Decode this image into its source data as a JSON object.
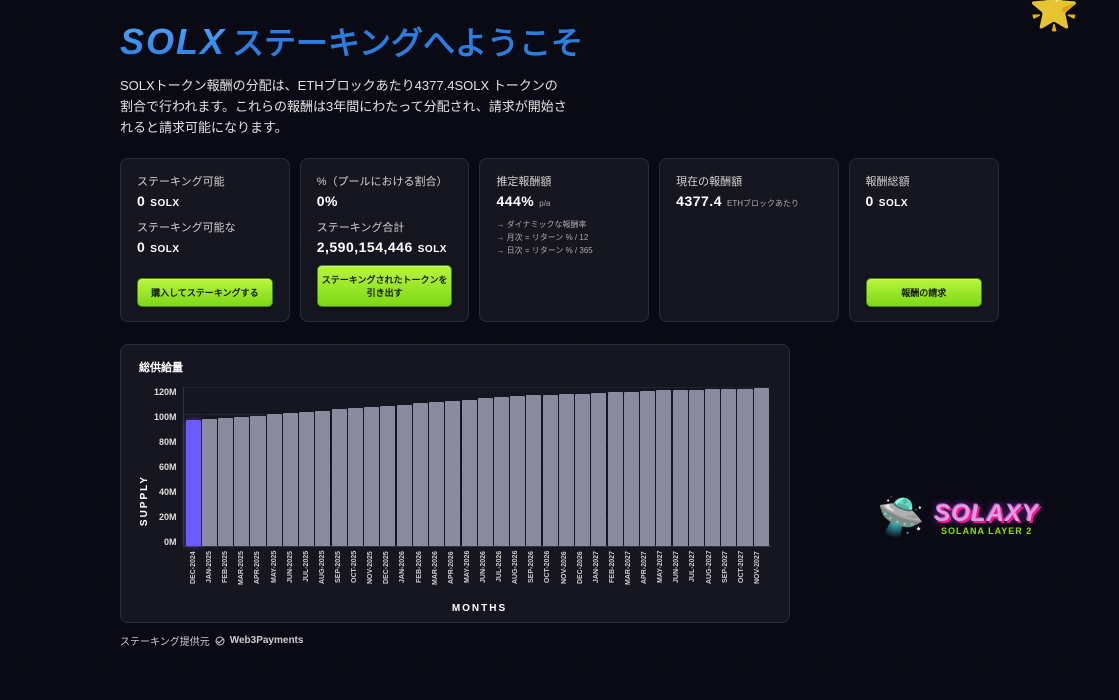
{
  "header": {
    "title_brand": "SOLX",
    "title_rest": "ステーキングへようこそ",
    "description": "SOLXトークン報酬の分配は、ETHブロックあたり4377.4SOLX トークンの割合で行われます。これらの報酬は3年間にわたって分配され、請求が開始されると請求可能になります。"
  },
  "cards": {
    "c1": {
      "label1": "ステーキング可能",
      "value1": "0",
      "unit1": "SOLX",
      "label2": "ステーキング可能な",
      "value2": "0",
      "unit2": "SOLX",
      "button": "購入してステーキングする"
    },
    "c2": {
      "label1": "%（プールにおける割合）",
      "value1": "0%",
      "label2": "ステーキング合計",
      "value2": "2,590,154,446",
      "unit2": "SOLX",
      "button": "ステーキングされたトークンを引き出す"
    },
    "c3": {
      "label1": "推定報酬額",
      "value1": "444%",
      "unit1": "p/a",
      "note1": "→ ダイナミックな報酬率",
      "note2": "→ 月次 = リターン % / 12",
      "note3": "→ 日次 = リターン % / 365"
    },
    "c4": {
      "label1": "現在の報酬額",
      "value1": "4377.4",
      "unit1": "ETHブロックあたり"
    },
    "c5": {
      "label1": "報酬総額",
      "value1": "0",
      "unit1": "SOLX",
      "button": "報酬の請求"
    }
  },
  "chart": {
    "title": "総供給量",
    "y_label": "SUPPLY",
    "x_label": "MONTHS",
    "y_ticks": [
      "120M",
      "100M",
      "80M",
      "60M",
      "40M",
      "20M",
      "0M"
    ],
    "y_max": 130,
    "bars": [
      {
        "label": "DEC-2024",
        "value": 103,
        "active": true
      },
      {
        "label": "JAN-2025",
        "value": 104
      },
      {
        "label": "FEB-2025",
        "value": 105
      },
      {
        "label": "MAR-2025",
        "value": 106
      },
      {
        "label": "APR-2025",
        "value": 107
      },
      {
        "label": "MAY-2025",
        "value": 108
      },
      {
        "label": "JUN-2025",
        "value": 109
      },
      {
        "label": "JUL-2025",
        "value": 110
      },
      {
        "label": "AUG-2025",
        "value": 111
      },
      {
        "label": "SEP-2025",
        "value": 112
      },
      {
        "label": "OCT-2025",
        "value": 113
      },
      {
        "label": "NOV-2025",
        "value": 114
      },
      {
        "label": "DEC-2025",
        "value": 115
      },
      {
        "label": "JAN-2026",
        "value": 116
      },
      {
        "label": "FEB-2026",
        "value": 117
      },
      {
        "label": "MAR-2026",
        "value": 118
      },
      {
        "label": "APR-2026",
        "value": 119
      },
      {
        "label": "MAY-2026",
        "value": 120
      },
      {
        "label": "JUN-2026",
        "value": 121
      },
      {
        "label": "JUL-2026",
        "value": 122
      },
      {
        "label": "AUG-2026",
        "value": 123
      },
      {
        "label": "SEP-2026",
        "value": 123.5
      },
      {
        "label": "OCT-2026",
        "value": 124
      },
      {
        "label": "NOV-2026",
        "value": 124.5
      },
      {
        "label": "DEC-2026",
        "value": 125
      },
      {
        "label": "JAN-2027",
        "value": 125.5
      },
      {
        "label": "FEB-2027",
        "value": 126
      },
      {
        "label": "MAR-2027",
        "value": 126.5
      },
      {
        "label": "APR-2027",
        "value": 127
      },
      {
        "label": "MAY-2027",
        "value": 127.5
      },
      {
        "label": "JUN-2027",
        "value": 128
      },
      {
        "label": "JUL-2027",
        "value": 128
      },
      {
        "label": "AUG-2027",
        "value": 128.5
      },
      {
        "label": "SEP-2027",
        "value": 129
      },
      {
        "label": "OCT-2027",
        "value": 129
      },
      {
        "label": "NOV-2027",
        "value": 129.5
      }
    ],
    "bar_color_active": "#6b5bff",
    "bar_color": "#8a8aa0"
  },
  "footer": {
    "prefix": "ステーキング提供元",
    "provider": "Web3Payments"
  },
  "logo": {
    "name": "SOLAXY",
    "sub": "SOLANA LAYER 2"
  }
}
